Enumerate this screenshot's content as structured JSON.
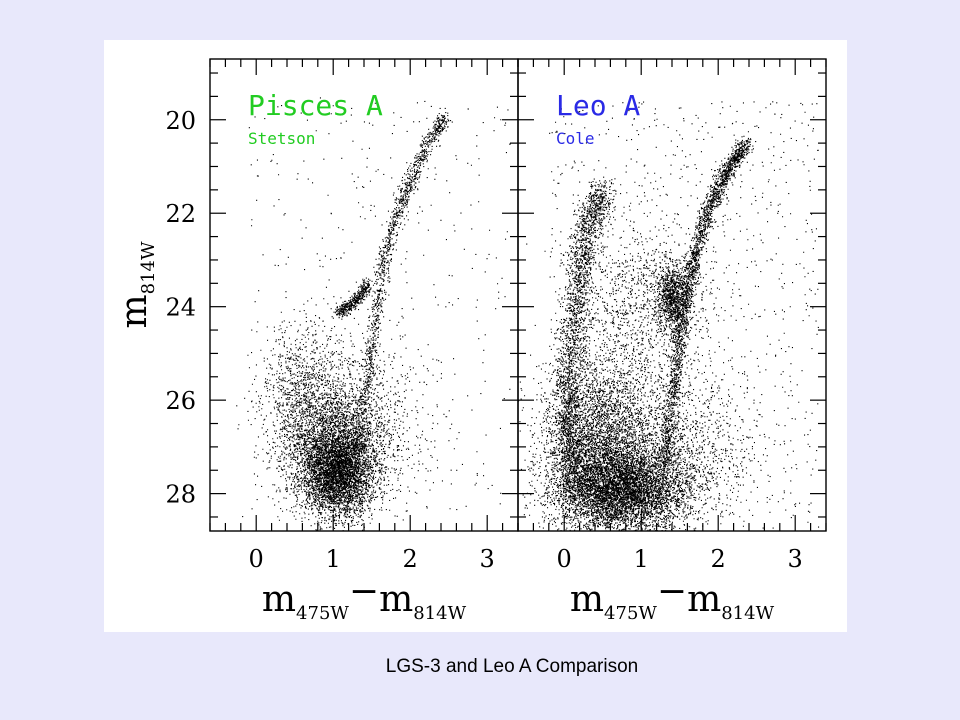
{
  "slide": {
    "caption": "LGS-3 and Leo A Comparison",
    "background": "#e8e8fb"
  },
  "chart_data": [
    {
      "type": "scatter",
      "panel_title": "Pisces A",
      "panel_subtitle": "Stetson",
      "title_color": "#22cc22",
      "xlabel": {
        "main1": "m",
        "sub1": "475W",
        "minus": "−",
        "main2": "m",
        "sub2": "814W"
      },
      "ylabel": {
        "main": "m",
        "sub": "814W"
      },
      "xlim": [
        -0.6,
        3.4
      ],
      "ylim": [
        28.8,
        18.7
      ],
      "y_inverted": true,
      "xticks": [
        0,
        1,
        2,
        3
      ],
      "yticks": [
        20,
        22,
        24,
        26,
        28
      ],
      "show_y_tick_labels": true,
      "components": [
        {
          "kind": "blob",
          "n": 3400,
          "cx": 1.05,
          "cy": 27.55,
          "sx": 0.22,
          "sy": 0.45
        },
        {
          "kind": "blob",
          "n": 2600,
          "cx": 1.0,
          "cy": 26.9,
          "sx": 0.35,
          "sy": 0.75
        },
        {
          "kind": "blob",
          "n": 900,
          "cx": 0.6,
          "cy": 25.9,
          "sx": 0.28,
          "sy": 0.8
        },
        {
          "kind": "blob",
          "n": 700,
          "cx": 1.35,
          "cy": 26.6,
          "sx": 0.45,
          "sy": 1.0
        },
        {
          "kind": "curve",
          "n": 1300,
          "points": [
            [
              1.25,
              27.2
            ],
            [
              1.45,
              25.5
            ],
            [
              1.55,
              24.2
            ],
            [
              1.65,
              23.0
            ],
            [
              1.82,
              22.0
            ],
            [
              2.0,
              21.3
            ],
            [
              2.22,
              20.5
            ],
            [
              2.45,
              19.9
            ]
          ],
          "sx": 0.045,
          "sy": 0.08
        },
        {
          "kind": "curve",
          "n": 450,
          "points": [
            [
              1.05,
              24.1
            ],
            [
              1.2,
              24.0
            ],
            [
              1.35,
              23.75
            ],
            [
              1.45,
              23.5
            ]
          ],
          "sx": 0.04,
          "sy": 0.07
        },
        {
          "kind": "field",
          "n": 420,
          "x": [
            -0.1,
            3.3
          ],
          "y": [
            19.5,
            28.4
          ]
        }
      ]
    },
    {
      "type": "scatter",
      "panel_title": "Leo A",
      "panel_subtitle": "Cole",
      "title_color": "#2a2ae6",
      "xlabel": {
        "main1": "m",
        "sub1": "475W",
        "minus": "−",
        "main2": "m",
        "sub2": "814W"
      },
      "xlim": [
        -0.6,
        3.4
      ],
      "ylim": [
        28.8,
        18.7
      ],
      "y_inverted": true,
      "xticks": [
        0,
        1,
        2,
        3
      ],
      "yticks": [
        20,
        22,
        24,
        26,
        28
      ],
      "show_y_tick_labels": false,
      "components": [
        {
          "kind": "blob",
          "n": 5200,
          "cx": 0.75,
          "cy": 27.9,
          "sx": 0.42,
          "sy": 0.45
        },
        {
          "kind": "blob",
          "n": 3200,
          "cx": 0.4,
          "cy": 26.8,
          "sx": 0.35,
          "sy": 0.9
        },
        {
          "kind": "blob",
          "n": 1600,
          "cx": 1.3,
          "cy": 27.0,
          "sx": 0.55,
          "sy": 0.8
        },
        {
          "kind": "curve",
          "n": 2400,
          "points": [
            [
              0.1,
              28.0
            ],
            [
              0.05,
              26.5
            ],
            [
              0.08,
              25.0
            ],
            [
              0.18,
              23.5
            ],
            [
              0.3,
              22.3
            ],
            [
              0.5,
              21.5
            ]
          ],
          "sx": 0.09,
          "sy": 0.2
        },
        {
          "kind": "curve",
          "n": 2200,
          "points": [
            [
              1.3,
              27.3
            ],
            [
              1.45,
              25.5
            ],
            [
              1.55,
              24.0
            ],
            [
              1.7,
              22.8
            ],
            [
              1.9,
              21.8
            ],
            [
              2.1,
              21.1
            ],
            [
              2.35,
              20.5
            ]
          ],
          "sx": 0.05,
          "sy": 0.08
        },
        {
          "kind": "blob",
          "n": 900,
          "cx": 1.4,
          "cy": 23.8,
          "sx": 0.1,
          "sy": 0.35
        },
        {
          "kind": "blob",
          "n": 1100,
          "cx": 1.0,
          "cy": 24.0,
          "sx": 0.45,
          "sy": 0.9
        },
        {
          "kind": "field",
          "n": 1100,
          "x": [
            -0.2,
            3.3
          ],
          "y": [
            19.6,
            28.8
          ]
        }
      ]
    }
  ]
}
